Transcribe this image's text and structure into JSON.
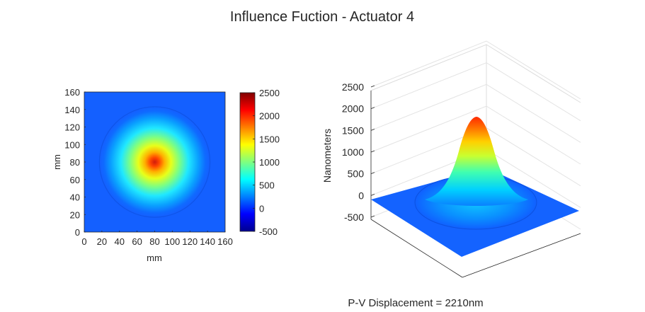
{
  "figure": {
    "title": "Influence Fuction - Actuator 4",
    "footer": "P-V Displacement = 2210nm"
  },
  "chart_data": [
    {
      "type": "heatmap",
      "colormap": "jet",
      "xlabel": "mm",
      "ylabel": "mm",
      "xlim": [
        0,
        160
      ],
      "ylim": [
        0,
        160
      ],
      "x_ticks": [
        "0",
        "20",
        "40",
        "60",
        "80",
        "100",
        "120",
        "140",
        "160"
      ],
      "y_ticks": [
        "0",
        "20",
        "40",
        "60",
        "80",
        "100",
        "120",
        "140",
        "160"
      ],
      "colorbar": {
        "clim": [
          -500,
          2500
        ],
        "ticks": [
          "-500",
          "0",
          "500",
          "1000",
          "1500",
          "2000",
          "2500"
        ]
      },
      "peak_center": [
        80,
        80
      ],
      "peak_value": 2210,
      "aperture_radius_mm": 62,
      "background_value": 0
    },
    {
      "type": "surface",
      "colormap": "jet",
      "zlabel": "Nanometers",
      "zlim": [
        -500,
        2500
      ],
      "z_ticks": [
        "-500",
        "0",
        "500",
        "1000",
        "1500",
        "2000",
        "2500"
      ],
      "peak_value": 2210
    }
  ]
}
